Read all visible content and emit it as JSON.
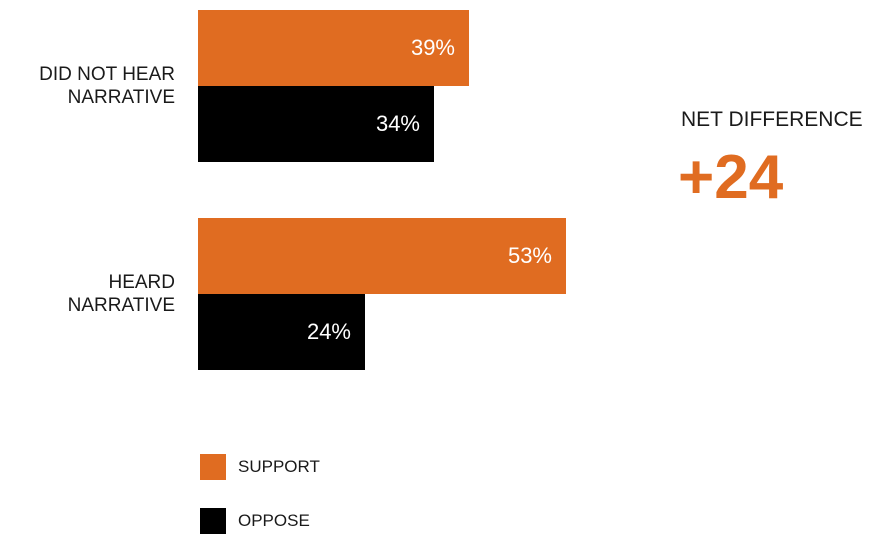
{
  "chart_data": {
    "type": "bar",
    "orientation": "horizontal",
    "categories": [
      "DID NOT HEAR NARRATIVE",
      "HEARD NARRATIVE"
    ],
    "series": [
      {
        "name": "SUPPORT",
        "values": [
          39,
          53
        ],
        "labels": [
          "39%",
          "53%"
        ],
        "color": "#e06c21"
      },
      {
        "name": "OPPOSE",
        "values": [
          34,
          24
        ],
        "labels": [
          "34%",
          "24%"
        ],
        "color": "#000000"
      }
    ],
    "legend": {
      "placement": "bottom-left"
    },
    "grid": false
  },
  "annotation": {
    "title": "NET DIFFERENCE",
    "value": "+24",
    "color": "#e06c21"
  }
}
